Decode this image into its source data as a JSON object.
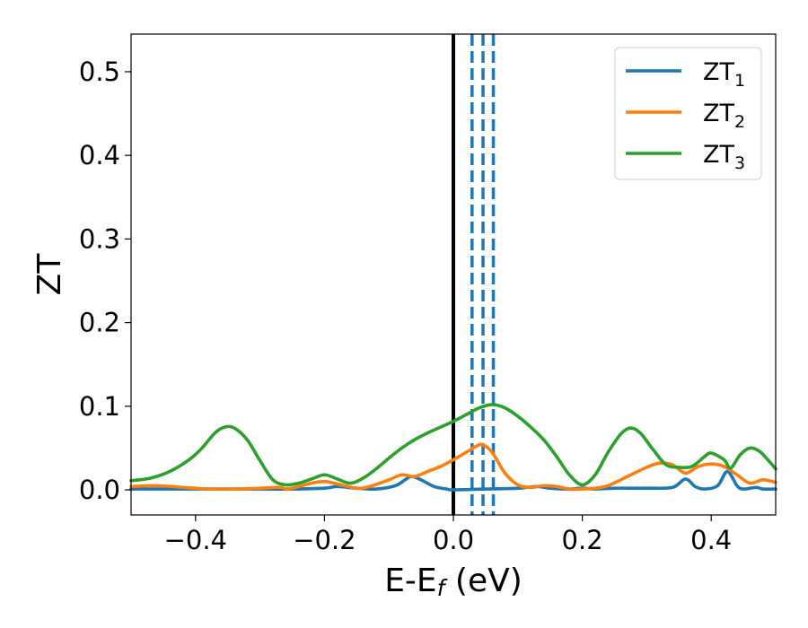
{
  "chart_data": {
    "type": "line",
    "title": "",
    "xlabel": "E-E",
    "xlabel_sub": "f",
    "xlabel_unit": " (eV)",
    "ylabel": "ZT",
    "xlim": [
      -0.5,
      0.5
    ],
    "ylim": [
      -0.03,
      0.545
    ],
    "xticks": [
      -0.4,
      -0.2,
      0.0,
      0.2,
      0.4
    ],
    "xtick_labels": [
      "−0.4",
      "−0.2",
      "0.0",
      "0.2",
      "0.4"
    ],
    "yticks": [
      0.0,
      0.1,
      0.2,
      0.3,
      0.4,
      0.5
    ],
    "ytick_labels": [
      "0.0",
      "0.1",
      "0.2",
      "0.3",
      "0.4",
      "0.5"
    ],
    "grid": false,
    "legend_position": "top-right",
    "vertical_lines": [
      {
        "x": 0.0,
        "style": "solid",
        "color": "#000000"
      },
      {
        "x": 0.029,
        "style": "dashed",
        "color": "#1f77b4"
      },
      {
        "x": 0.046,
        "style": "dashed",
        "color": "#1f77b4"
      },
      {
        "x": 0.062,
        "style": "dashed",
        "color": "#1f77b4"
      }
    ],
    "series": [
      {
        "name": "ZT",
        "subscript": "1",
        "color": "#1f77b4",
        "points": [
          [
            -0.5,
            0.001
          ],
          [
            -0.4,
            0.001
          ],
          [
            -0.3,
            0.001
          ],
          [
            -0.25,
            0.001
          ],
          [
            -0.2,
            0.002
          ],
          [
            -0.18,
            0.004
          ],
          [
            -0.15,
            0.002
          ],
          [
            -0.12,
            0.001
          ],
          [
            -0.09,
            0.005
          ],
          [
            -0.075,
            0.012
          ],
          [
            -0.065,
            0.016
          ],
          [
            -0.05,
            0.012
          ],
          [
            -0.03,
            0.004
          ],
          [
            -0.01,
            0.001
          ],
          [
            0.0,
            0.0
          ],
          [
            0.05,
            0.001
          ],
          [
            0.1,
            0.002
          ],
          [
            0.13,
            0.004
          ],
          [
            0.15,
            0.002
          ],
          [
            0.18,
            0.001
          ],
          [
            0.2,
            0.002
          ],
          [
            0.22,
            0.001
          ],
          [
            0.25,
            0.002
          ],
          [
            0.3,
            0.002
          ],
          [
            0.34,
            0.003
          ],
          [
            0.36,
            0.013
          ],
          [
            0.375,
            0.004
          ],
          [
            0.39,
            0.001
          ],
          [
            0.41,
            0.005
          ],
          [
            0.425,
            0.022
          ],
          [
            0.44,
            0.005
          ],
          [
            0.45,
            0.001
          ],
          [
            0.47,
            0.003
          ],
          [
            0.48,
            0.001
          ],
          [
            0.5,
            0.001
          ]
        ]
      },
      {
        "name": "ZT",
        "subscript": "2",
        "color": "#ff7f0e",
        "points": [
          [
            -0.5,
            0.004
          ],
          [
            -0.46,
            0.005
          ],
          [
            -0.42,
            0.003
          ],
          [
            -0.38,
            0.001
          ],
          [
            -0.34,
            0.001
          ],
          [
            -0.3,
            0.002
          ],
          [
            -0.27,
            0.003
          ],
          [
            -0.26,
            0.001
          ],
          [
            -0.25,
            0.002
          ],
          [
            -0.22,
            0.008
          ],
          [
            -0.2,
            0.01
          ],
          [
            -0.18,
            0.007
          ],
          [
            -0.15,
            0.002
          ],
          [
            -0.13,
            0.004
          ],
          [
            -0.1,
            0.012
          ],
          [
            -0.08,
            0.018
          ],
          [
            -0.06,
            0.016
          ],
          [
            -0.04,
            0.022
          ],
          [
            -0.02,
            0.028
          ],
          [
            0.0,
            0.036
          ],
          [
            0.02,
            0.045
          ],
          [
            0.035,
            0.052
          ],
          [
            0.045,
            0.054
          ],
          [
            0.06,
            0.045
          ],
          [
            0.08,
            0.02
          ],
          [
            0.1,
            0.006
          ],
          [
            0.12,
            0.003
          ],
          [
            0.14,
            0.005
          ],
          [
            0.16,
            0.004
          ],
          [
            0.18,
            0.001
          ],
          [
            0.2,
            0.001
          ],
          [
            0.22,
            0.002
          ],
          [
            0.24,
            0.005
          ],
          [
            0.27,
            0.016
          ],
          [
            0.3,
            0.027
          ],
          [
            0.32,
            0.032
          ],
          [
            0.34,
            0.03
          ],
          [
            0.36,
            0.02
          ],
          [
            0.38,
            0.028
          ],
          [
            0.4,
            0.031
          ],
          [
            0.42,
            0.028
          ],
          [
            0.44,
            0.018
          ],
          [
            0.46,
            0.008
          ],
          [
            0.48,
            0.012
          ],
          [
            0.5,
            0.009
          ]
        ]
      },
      {
        "name": "ZT",
        "subscript": "3",
        "color": "#2ca02c",
        "points": [
          [
            -0.5,
            0.011
          ],
          [
            -0.47,
            0.014
          ],
          [
            -0.44,
            0.022
          ],
          [
            -0.41,
            0.036
          ],
          [
            -0.39,
            0.05
          ],
          [
            -0.37,
            0.068
          ],
          [
            -0.355,
            0.075
          ],
          [
            -0.34,
            0.074
          ],
          [
            -0.32,
            0.06
          ],
          [
            -0.3,
            0.035
          ],
          [
            -0.28,
            0.012
          ],
          [
            -0.26,
            0.006
          ],
          [
            -0.24,
            0.008
          ],
          [
            -0.22,
            0.013
          ],
          [
            -0.2,
            0.018
          ],
          [
            -0.18,
            0.013
          ],
          [
            -0.16,
            0.008
          ],
          [
            -0.14,
            0.014
          ],
          [
            -0.12,
            0.025
          ],
          [
            -0.1,
            0.038
          ],
          [
            -0.08,
            0.05
          ],
          [
            -0.06,
            0.06
          ],
          [
            -0.04,
            0.068
          ],
          [
            -0.02,
            0.075
          ],
          [
            0.0,
            0.082
          ],
          [
            0.02,
            0.09
          ],
          [
            0.04,
            0.098
          ],
          [
            0.06,
            0.102
          ],
          [
            0.08,
            0.098
          ],
          [
            0.1,
            0.088
          ],
          [
            0.12,
            0.075
          ],
          [
            0.14,
            0.06
          ],
          [
            0.16,
            0.04
          ],
          [
            0.18,
            0.018
          ],
          [
            0.2,
            0.006
          ],
          [
            0.22,
            0.018
          ],
          [
            0.24,
            0.045
          ],
          [
            0.26,
            0.067
          ],
          [
            0.275,
            0.074
          ],
          [
            0.29,
            0.068
          ],
          [
            0.31,
            0.048
          ],
          [
            0.33,
            0.03
          ],
          [
            0.35,
            0.027
          ],
          [
            0.37,
            0.028
          ],
          [
            0.39,
            0.04
          ],
          [
            0.4,
            0.044
          ],
          [
            0.42,
            0.036
          ],
          [
            0.43,
            0.026
          ],
          [
            0.445,
            0.042
          ],
          [
            0.46,
            0.05
          ],
          [
            0.475,
            0.046
          ],
          [
            0.49,
            0.034
          ],
          [
            0.5,
            0.025
          ]
        ]
      }
    ]
  }
}
